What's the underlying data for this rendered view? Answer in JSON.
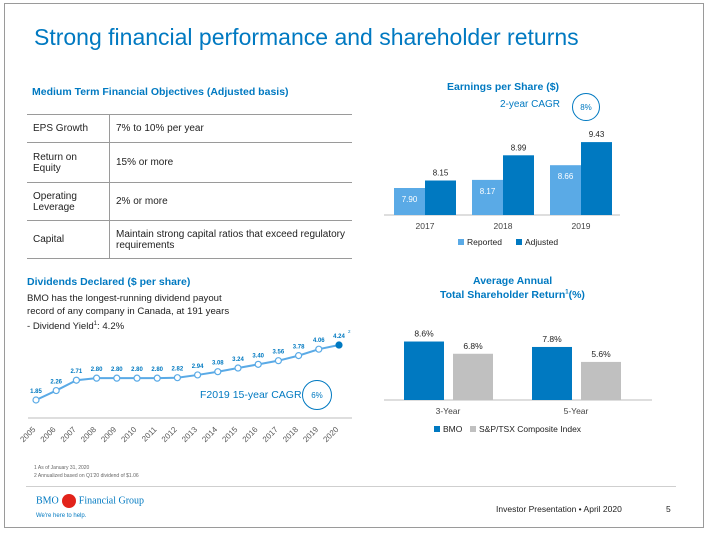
{
  "title": "Strong financial performance and shareholder returns",
  "objectives": {
    "heading": "Medium Term Financial Objectives (Adjusted basis)",
    "rows": [
      {
        "key": "EPS Growth",
        "value": "7% to 10% per year"
      },
      {
        "key": "Return on Equity",
        "value": "15% or more"
      },
      {
        "key": "Operating Leverage",
        "value": "2% or more"
      },
      {
        "key": "Capital",
        "value": "Maintain strong capital ratios that exceed regulatory requirements"
      }
    ]
  },
  "eps": {
    "heading": "Earnings per Share ($)",
    "cagr_label": "2-year CAGR",
    "cagr_value": "8%"
  },
  "dividends": {
    "heading": "Dividends Declared ($ per share)",
    "line1": "BMO has the longest-running dividend payout",
    "line2": "record of any company in Canada, at 191 years",
    "line3": "- Dividend Yield",
    "line3_sup": "1",
    "line3_end": ": 4.2%",
    "cagr_label": "F2019 15-year CAGR",
    "cagr_value": "6%"
  },
  "tsr": {
    "heading1": "Average Annual",
    "heading2": "Total Shareholder Return",
    "heading2_sup": "1",
    "heading2_end": "(%)"
  },
  "footnotes": [
    "1 As of January 31, 2020",
    "2 Annualized based on Q1'20 dividend of $1.06"
  ],
  "footer": {
    "logo_left": "BMO",
    "logo_right": "Financial Group",
    "tagline": "We're here to help.",
    "presentation": "Investor Presentation • April 2020",
    "page": "5"
  },
  "colors": {
    "accent": "#0079c1",
    "light_blue": "#5aaae6",
    "grey": "#c0c0c0",
    "logo_red": "#e2231a"
  },
  "chart_data": [
    {
      "type": "bar",
      "title": "Earnings per Share ($)",
      "categories": [
        "2017",
        "2018",
        "2019"
      ],
      "series": [
        {
          "name": "Reported",
          "values": [
            7.9,
            8.17,
            8.66
          ],
          "labels": [
            "7.90",
            "8.17",
            "8.66"
          ],
          "color": "#5aaae6"
        },
        {
          "name": "Adjusted",
          "values": [
            8.15,
            8.99,
            9.43
          ],
          "labels": [
            "8.15",
            "8.99",
            "9.43"
          ],
          "color": "#0079c1"
        }
      ]
    },
    {
      "type": "line",
      "title": "Dividends Declared ($ per share)",
      "x": [
        "2005",
        "2006",
        "2007",
        "2008",
        "2009",
        "2010",
        "2011",
        "2012",
        "2013",
        "2014",
        "2015",
        "2016",
        "2017",
        "2018",
        "2019",
        "2020"
      ],
      "values": [
        1.85,
        2.26,
        2.71,
        2.8,
        2.8,
        2.8,
        2.8,
        2.82,
        2.94,
        3.08,
        3.24,
        3.4,
        3.56,
        3.78,
        4.06,
        4.24
      ],
      "labels": [
        "1.85",
        "2.26",
        "2.71",
        "2.80",
        "2.80",
        "2.80",
        "2.80",
        "2.82",
        "2.94",
        "3.08",
        "3.24",
        "3.40",
        "3.56",
        "3.78",
        "4.06",
        "4.24"
      ],
      "last_label_sup": "2"
    },
    {
      "type": "bar",
      "title": "Average Annual Total Shareholder Return (%)",
      "categories": [
        "3-Year",
        "5-Year"
      ],
      "series": [
        {
          "name": "BMO",
          "values": [
            8.6,
            7.8
          ],
          "labels": [
            "8.6%",
            "7.8%"
          ],
          "color": "#0079c1"
        },
        {
          "name": "S&P/TSX Composite Index",
          "values": [
            6.8,
            5.6
          ],
          "labels": [
            "6.8%",
            "5.6%"
          ],
          "color": "#c0c0c0"
        }
      ]
    }
  ]
}
